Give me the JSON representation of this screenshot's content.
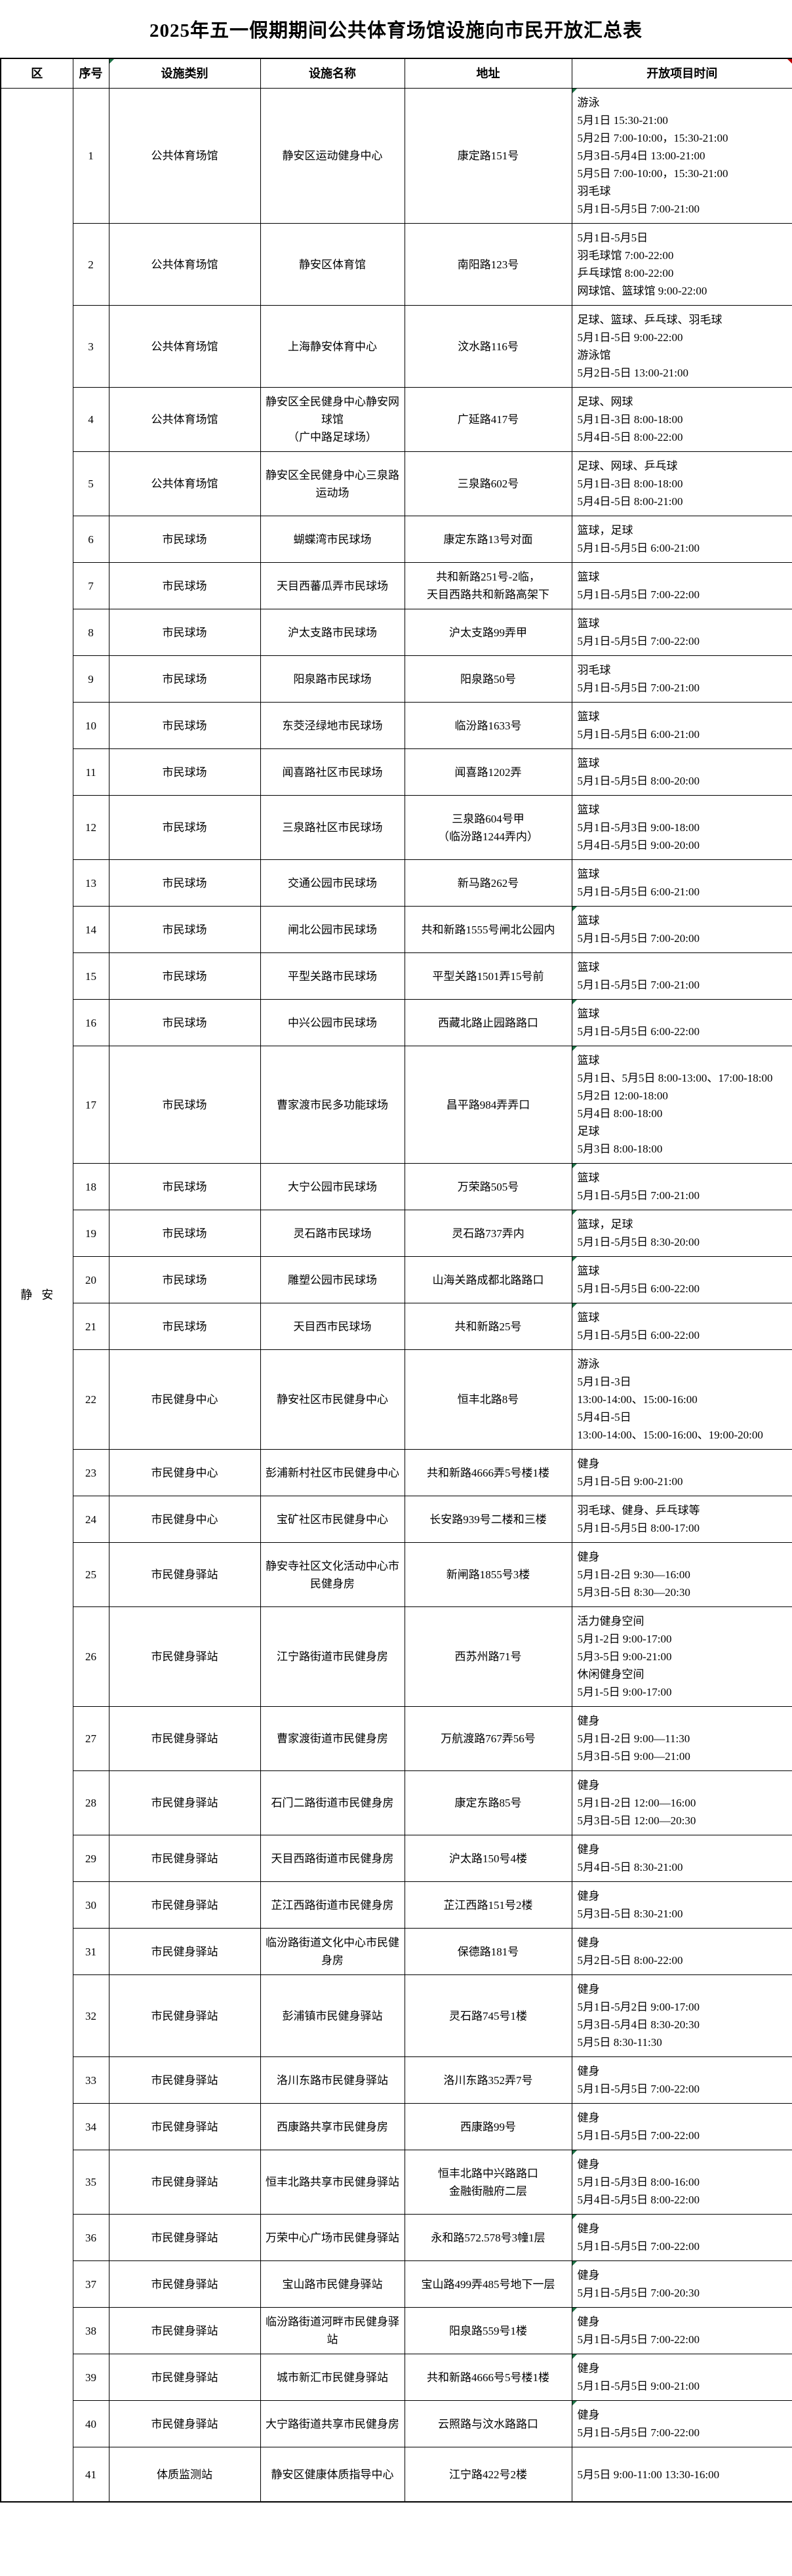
{
  "title": "2025年五一假期期间公共体育场馆设施向市民开放汇总表",
  "district": "静安",
  "columns": {
    "district": "区",
    "no": "序号",
    "category": "设施类别",
    "name": "设施名称",
    "address": "地址",
    "time": "开放项目时间"
  },
  "marker_colors": {
    "corner_green": "#1e7145",
    "corner_red": "#c00000"
  },
  "rows": [
    {
      "no": "1",
      "category": "公共体育场馆",
      "name": "静安区运动健身中心",
      "address": "康定路151号",
      "schedule": [
        "游泳",
        "5月1日 15:30-21:00",
        "5月2日 7:00-10:00，15:30-21:00",
        "5月3日-5月4日 13:00-21:00",
        "5月5日 7:00-10:00，15:30-21:00",
        "羽毛球",
        "5月1日-5月5日 7:00-21:00"
      ],
      "flag": true
    },
    {
      "no": "2",
      "category": "公共体育场馆",
      "name": "静安区体育馆",
      "address": "南阳路123号",
      "schedule": [
        "5月1日-5月5日",
        "羽毛球馆 7:00-22:00",
        "乒乓球馆 8:00-22:00",
        "网球馆、篮球馆 9:00-22:00"
      ],
      "flag": false
    },
    {
      "no": "3",
      "category": "公共体育场馆",
      "name": "上海静安体育中心",
      "address": "汶水路116号",
      "schedule": [
        "足球、篮球、乒乓球、羽毛球",
        "5月1日-5日 9:00-22:00",
        "游泳馆",
        "5月2日-5日 13:00-21:00"
      ],
      "flag": false
    },
    {
      "no": "4",
      "category": "公共体育场馆",
      "name": "静安区全民健身中心静安网球馆\n（广中路足球场）",
      "address": "广延路417号",
      "schedule": [
        "足球、网球",
        "5月1日-3日 8:00-18:00",
        "5月4日-5日 8:00-22:00"
      ],
      "flag": false
    },
    {
      "no": "5",
      "category": "公共体育场馆",
      "name": "静安区全民健身中心三泉路运动场",
      "address": "三泉路602号",
      "schedule": [
        "足球、网球、乒乓球",
        "5月1日-3日 8:00-18:00",
        "5月4日-5日 8:00-21:00"
      ],
      "flag": false
    },
    {
      "no": "6",
      "category": "市民球场",
      "name": "蝴蝶湾市民球场",
      "address": "康定东路13号对面",
      "schedule": [
        "篮球，足球",
        "5月1日-5月5日 6:00-21:00"
      ],
      "flag": false
    },
    {
      "no": "7",
      "category": "市民球场",
      "name": "天目西蕃瓜弄市民球场",
      "address": "共和新路251号-2临，\n天目西路共和新路高架下",
      "schedule": [
        "篮球",
        "5月1日-5月5日 7:00-22:00"
      ],
      "flag": false
    },
    {
      "no": "8",
      "category": "市民球场",
      "name": "沪太支路市民球场",
      "address": "沪太支路99弄甲",
      "schedule": [
        "篮球",
        "5月1日-5月5日 7:00-22:00"
      ],
      "flag": false
    },
    {
      "no": "9",
      "category": "市民球场",
      "name": "阳泉路市民球场",
      "address": "阳泉路50号",
      "schedule": [
        "羽毛球",
        "5月1日-5月5日 7:00-21:00"
      ],
      "flag": false
    },
    {
      "no": "10",
      "category": "市民球场",
      "name": "东茭泾绿地市民球场",
      "address": "临汾路1633号",
      "schedule": [
        "篮球",
        "5月1日-5月5日 6:00-21:00"
      ],
      "flag": false
    },
    {
      "no": "11",
      "category": "市民球场",
      "name": "闻喜路社区市民球场",
      "address": "闻喜路1202弄",
      "schedule": [
        "篮球",
        "5月1日-5月5日 8:00-20:00"
      ],
      "flag": false
    },
    {
      "no": "12",
      "category": "市民球场",
      "name": "三泉路社区市民球场",
      "address": "三泉路604号甲\n（临汾路1244弄内）",
      "schedule": [
        "篮球",
        "5月1日-5月3日 9:00-18:00",
        "5月4日-5月5日 9:00-20:00"
      ],
      "flag": false
    },
    {
      "no": "13",
      "category": "市民球场",
      "name": "交通公园市民球场",
      "address": "新马路262号",
      "schedule": [
        "篮球",
        "5月1日-5月5日 6:00-21:00"
      ],
      "flag": false
    },
    {
      "no": "14",
      "category": "市民球场",
      "name": "闸北公园市民球场",
      "address": "共和新路1555号闸北公园内",
      "schedule": [
        "篮球",
        "5月1日-5月5日 7:00-20:00"
      ],
      "flag": true
    },
    {
      "no": "15",
      "category": "市民球场",
      "name": "平型关路市民球场",
      "address": "平型关路1501弄15号前",
      "schedule": [
        "篮球",
        "5月1日-5月5日 7:00-21:00"
      ],
      "flag": false
    },
    {
      "no": "16",
      "category": "市民球场",
      "name": "中兴公园市民球场",
      "address": "西藏北路止园路路口",
      "schedule": [
        "篮球",
        "5月1日-5月5日 6:00-22:00"
      ],
      "flag": true
    },
    {
      "no": "17",
      "category": "市民球场",
      "name": "曹家渡市民多功能球场",
      "address": "昌平路984弄弄口",
      "schedule": [
        "篮球",
        "5月1日、5月5日 8:00-13:00、17:00-18:00",
        "5月2日 12:00-18:00",
        "5月4日 8:00-18:00",
        "足球",
        "5月3日 8:00-18:00"
      ],
      "flag": true
    },
    {
      "no": "18",
      "category": "市民球场",
      "name": "大宁公园市民球场",
      "address": "万荣路505号",
      "schedule": [
        "篮球",
        "5月1日-5月5日 7:00-21:00"
      ],
      "flag": true
    },
    {
      "no": "19",
      "category": "市民球场",
      "name": "灵石路市民球场",
      "address": "灵石路737弄内",
      "schedule": [
        "篮球，足球",
        "5月1日-5月5日 8:30-20:00"
      ],
      "flag": true
    },
    {
      "no": "20",
      "category": "市民球场",
      "name": "雕塑公园市民球场",
      "address": "山海关路成都北路路口",
      "schedule": [
        "篮球",
        "5月1日-5月5日 6:00-22:00"
      ],
      "flag": true
    },
    {
      "no": "21",
      "category": "市民球场",
      "name": "天目西市民球场",
      "address": "共和新路25号",
      "schedule": [
        "篮球",
        "5月1日-5月5日 6:00-22:00"
      ],
      "flag": true
    },
    {
      "no": "22",
      "category": "市民健身中心",
      "name": "静安社区市民健身中心",
      "address": "恒丰北路8号",
      "schedule": [
        "游泳",
        "5月1日-3日",
        "13:00-14:00、15:00-16:00",
        "5月4日-5日",
        "13:00-14:00、15:00-16:00、19:00-20:00"
      ],
      "flag": false
    },
    {
      "no": "23",
      "category": "市民健身中心",
      "name": "彭浦新村社区市民健身中心",
      "address": "共和新路4666弄5号楼1楼",
      "schedule": [
        "健身",
        "5月1日-5日 9:00-21:00"
      ],
      "flag": false
    },
    {
      "no": "24",
      "category": "市民健身中心",
      "name": "宝矿社区市民健身中心",
      "address": "长安路939号二楼和三楼",
      "schedule": [
        "羽毛球、健身、乒乓球等",
        "5月1日-5月5日 8:00-17:00"
      ],
      "flag": false
    },
    {
      "no": "25",
      "category": "市民健身驿站",
      "name": "静安寺社区文化活动中心市民健身房",
      "address": "新闸路1855号3楼",
      "schedule": [
        "健身",
        "5月1日-2日 9:30—16:00",
        "5月3日-5日 8:30—20:30"
      ],
      "flag": false
    },
    {
      "no": "26",
      "category": "市民健身驿站",
      "name": "江宁路街道市民健身房",
      "address": "西苏州路71号",
      "schedule": [
        "活力健身空间",
        "5月1-2日 9:00-17:00",
        "5月3-5日 9:00-21:00",
        "休闲健身空间",
        "5月1-5日 9:00-17:00"
      ],
      "flag": false
    },
    {
      "no": "27",
      "category": "市民健身驿站",
      "name": "曹家渡街道市民健身房",
      "address": "万航渡路767弄56号",
      "schedule": [
        "健身",
        "5月1日-2日 9:00—11:30",
        "5月3日-5日 9:00—21:00"
      ],
      "flag": false
    },
    {
      "no": "28",
      "category": "市民健身驿站",
      "name": "石门二路街道市民健身房",
      "address": "康定东路85号",
      "schedule": [
        "健身",
        "5月1日-2日 12:00—16:00",
        "5月3日-5日 12:00—20:30"
      ],
      "flag": false
    },
    {
      "no": "29",
      "category": "市民健身驿站",
      "name": "天目西路街道市民健身房",
      "address": "沪太路150号4楼",
      "schedule": [
        "健身",
        "5月4日-5日 8:30-21:00"
      ],
      "flag": false
    },
    {
      "no": "30",
      "category": "市民健身驿站",
      "name": "芷江西路街道市民健身房",
      "address": "芷江西路151号2楼",
      "schedule": [
        "健身",
        "5月3日-5日 8:30-21:00"
      ],
      "flag": false
    },
    {
      "no": "31",
      "category": "市民健身驿站",
      "name": "临汾路街道文化中心市民健身房",
      "address": "保德路181号",
      "schedule": [
        "健身",
        "5月2日-5日 8:00-22:00"
      ],
      "flag": false
    },
    {
      "no": "32",
      "category": "市民健身驿站",
      "name": "彭浦镇市民健身驿站",
      "address": "灵石路745号1楼",
      "schedule": [
        "健身",
        "5月1日-5月2日 9:00-17:00",
        "5月3日-5月4日 8:30-20:30",
        "5月5日 8:30-11:30"
      ],
      "flag": false
    },
    {
      "no": "33",
      "category": "市民健身驿站",
      "name": "洛川东路市民健身驿站",
      "address": "洛川东路352弄7号",
      "schedule": [
        "健身",
        "5月1日-5月5日 7:00-22:00"
      ],
      "flag": false
    },
    {
      "no": "34",
      "category": "市民健身驿站",
      "name": "西康路共享市民健身房",
      "address": "西康路99号",
      "schedule": [
        "健身",
        "5月1日-5月5日 7:00-22:00"
      ],
      "flag": false
    },
    {
      "no": "35",
      "category": "市民健身驿站",
      "name": "恒丰北路共享市民健身驿站",
      "address": "恒丰北路中兴路路口\n金融街融府二层",
      "schedule": [
        "健身",
        "5月1日-5月3日 8:00-16:00",
        "5月4日-5月5日 8:00-22:00"
      ],
      "flag": true
    },
    {
      "no": "36",
      "category": "市民健身驿站",
      "name": "万荣中心广场市民健身驿站",
      "address": "永和路572.578号3幢1层",
      "schedule": [
        "健身",
        "5月1日-5月5日 7:00-22:00"
      ],
      "flag": true
    },
    {
      "no": "37",
      "category": "市民健身驿站",
      "name": "宝山路市民健身驿站",
      "address": "宝山路499弄485号地下一层",
      "schedule": [
        "健身",
        "5月1日-5月5日 7:00-20:30"
      ],
      "flag": true
    },
    {
      "no": "38",
      "category": "市民健身驿站",
      "name": "临汾路街道河畔市民健身驿站",
      "address": "阳泉路559号1楼",
      "schedule": [
        "健身",
        "5月1日-5月5日 7:00-22:00"
      ],
      "flag": true
    },
    {
      "no": "39",
      "category": "市民健身驿站",
      "name": "城市新汇市民健身驿站",
      "address": "共和新路4666号5号楼1楼",
      "schedule": [
        "健身",
        "5月1日-5月5日 9:00-21:00"
      ],
      "flag": true
    },
    {
      "no": "40",
      "category": "市民健身驿站",
      "name": "大宁路街道共享市民健身房",
      "address": "云照路与汶水路路口",
      "schedule": [
        "健身",
        "5月1日-5月5日 7:00-22:00"
      ],
      "flag": true
    },
    {
      "no": "41",
      "category": "体质监测站",
      "name": "静安区健康体质指导中心",
      "address": "江宁路422号2楼",
      "schedule": [
        "5月5日 9:00-11:00 13:30-16:00"
      ],
      "flag": false
    }
  ]
}
